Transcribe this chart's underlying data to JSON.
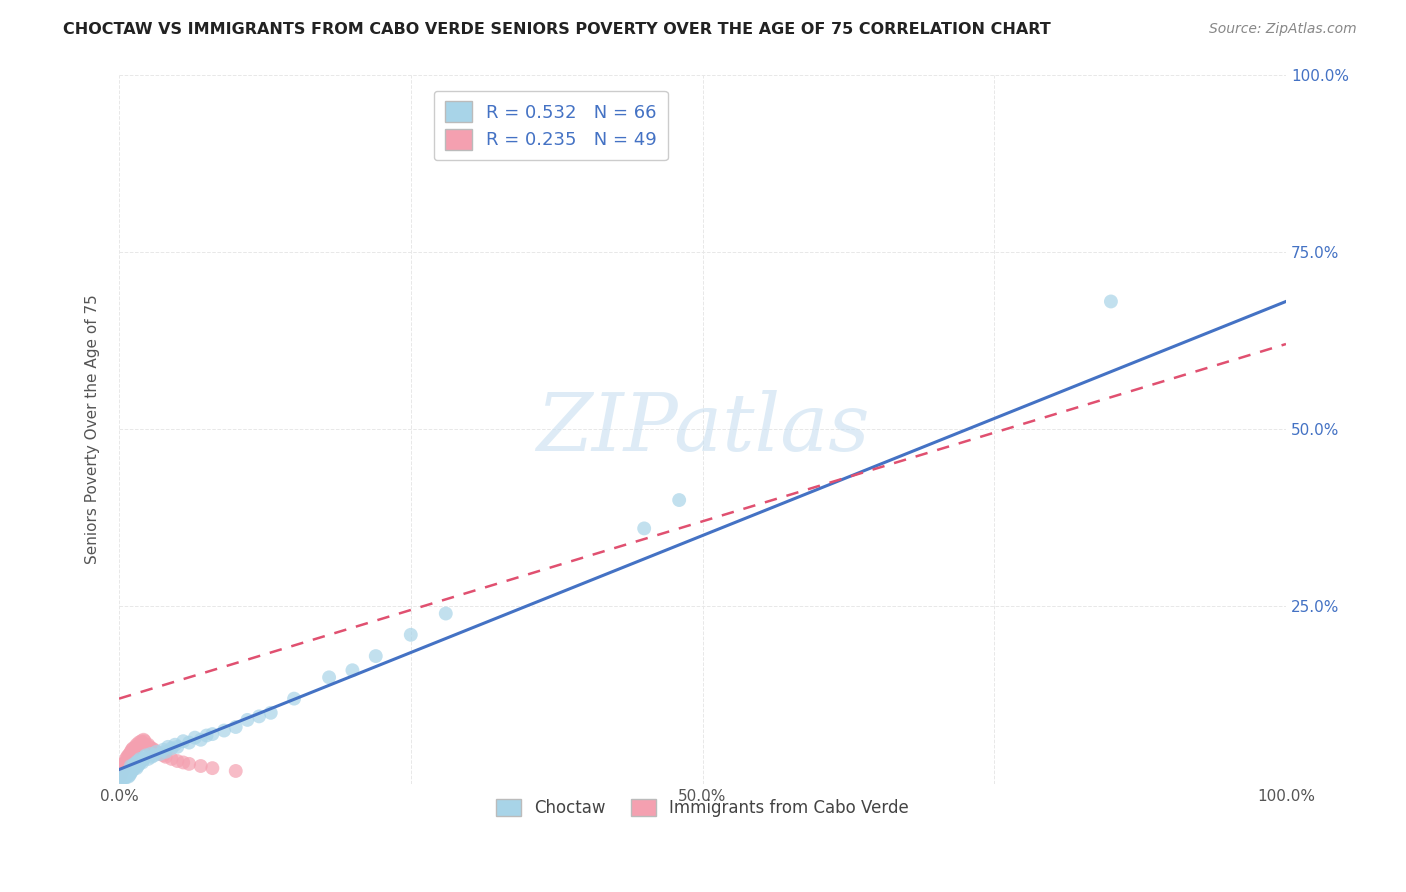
{
  "title": "CHOCTAW VS IMMIGRANTS FROM CABO VERDE SENIORS POVERTY OVER THE AGE OF 75 CORRELATION CHART",
  "source": "Source: ZipAtlas.com",
  "ylabel": "Seniors Poverty Over the Age of 75",
  "xlim": [
    0,
    1.0
  ],
  "ylim": [
    0,
    1.0
  ],
  "xticks": [
    0.0,
    0.25,
    0.5,
    0.75,
    1.0
  ],
  "xticklabels": [
    "0.0%",
    "",
    "50.0%",
    "",
    "100.0%"
  ],
  "yticks": [
    0.0,
    0.25,
    0.5,
    0.75,
    1.0
  ],
  "yticklabels_right": [
    "",
    "25.0%",
    "50.0%",
    "75.0%",
    "100.0%"
  ],
  "background_color": "#ffffff",
  "grid_color": "#e8e8e8",
  "series1_label": "Choctaw",
  "series1_color": "#a8d4e8",
  "series1_R": "0.532",
  "series1_N": "66",
  "series2_label": "Immigrants from Cabo Verde",
  "series2_color": "#f4a0b0",
  "series2_R": "0.235",
  "series2_N": "49",
  "blue_color": "#4472c4",
  "pink_color": "#e05070",
  "choctaw_x": [
    0.002,
    0.003,
    0.004,
    0.005,
    0.005,
    0.006,
    0.007,
    0.007,
    0.008,
    0.008,
    0.009,
    0.009,
    0.01,
    0.01,
    0.01,
    0.011,
    0.011,
    0.012,
    0.012,
    0.013,
    0.013,
    0.014,
    0.015,
    0.015,
    0.016,
    0.016,
    0.017,
    0.018,
    0.018,
    0.019,
    0.02,
    0.021,
    0.022,
    0.023,
    0.025,
    0.027,
    0.028,
    0.03,
    0.032,
    0.035,
    0.038,
    0.04,
    0.042,
    0.045,
    0.048,
    0.05,
    0.055,
    0.06,
    0.065,
    0.07,
    0.075,
    0.08,
    0.09,
    0.1,
    0.11,
    0.12,
    0.13,
    0.15,
    0.18,
    0.2,
    0.22,
    0.25,
    0.28,
    0.45,
    0.48,
    0.85
  ],
  "choctaw_y": [
    0.005,
    0.008,
    0.01,
    0.008,
    0.012,
    0.01,
    0.012,
    0.015,
    0.01,
    0.015,
    0.012,
    0.018,
    0.015,
    0.02,
    0.025,
    0.018,
    0.022,
    0.02,
    0.025,
    0.022,
    0.028,
    0.025,
    0.022,
    0.03,
    0.025,
    0.032,
    0.028,
    0.03,
    0.035,
    0.032,
    0.03,
    0.035,
    0.038,
    0.04,
    0.035,
    0.042,
    0.038,
    0.04,
    0.045,
    0.042,
    0.048,
    0.045,
    0.052,
    0.05,
    0.055,
    0.052,
    0.06,
    0.058,
    0.065,
    0.062,
    0.068,
    0.07,
    0.075,
    0.08,
    0.09,
    0.095,
    0.1,
    0.12,
    0.15,
    0.16,
    0.18,
    0.21,
    0.24,
    0.36,
    0.4,
    0.68
  ],
  "cabo_verde_x": [
    0.001,
    0.002,
    0.002,
    0.003,
    0.003,
    0.004,
    0.004,
    0.005,
    0.005,
    0.006,
    0.006,
    0.007,
    0.007,
    0.008,
    0.008,
    0.009,
    0.009,
    0.01,
    0.01,
    0.011,
    0.011,
    0.012,
    0.012,
    0.013,
    0.014,
    0.015,
    0.015,
    0.016,
    0.017,
    0.018,
    0.019,
    0.02,
    0.021,
    0.022,
    0.025,
    0.026,
    0.028,
    0.03,
    0.032,
    0.035,
    0.038,
    0.04,
    0.045,
    0.05,
    0.055,
    0.06,
    0.07,
    0.08,
    0.1
  ],
  "cabo_verde_y": [
    0.01,
    0.015,
    0.02,
    0.018,
    0.025,
    0.022,
    0.028,
    0.025,
    0.03,
    0.028,
    0.035,
    0.032,
    0.038,
    0.035,
    0.04,
    0.038,
    0.042,
    0.04,
    0.045,
    0.042,
    0.048,
    0.045,
    0.05,
    0.048,
    0.052,
    0.05,
    0.055,
    0.052,
    0.058,
    0.055,
    0.06,
    0.058,
    0.062,
    0.06,
    0.055,
    0.052,
    0.05,
    0.048,
    0.045,
    0.042,
    0.04,
    0.038,
    0.035,
    0.032,
    0.03,
    0.028,
    0.025,
    0.022,
    0.018
  ],
  "blue_line_x0": 0.0,
  "blue_line_y0": 0.02,
  "blue_line_x1": 1.0,
  "blue_line_y1": 0.68,
  "pink_line_x0": 0.0,
  "pink_line_y0": 0.12,
  "pink_line_x1": 1.0,
  "pink_line_y1": 0.62
}
